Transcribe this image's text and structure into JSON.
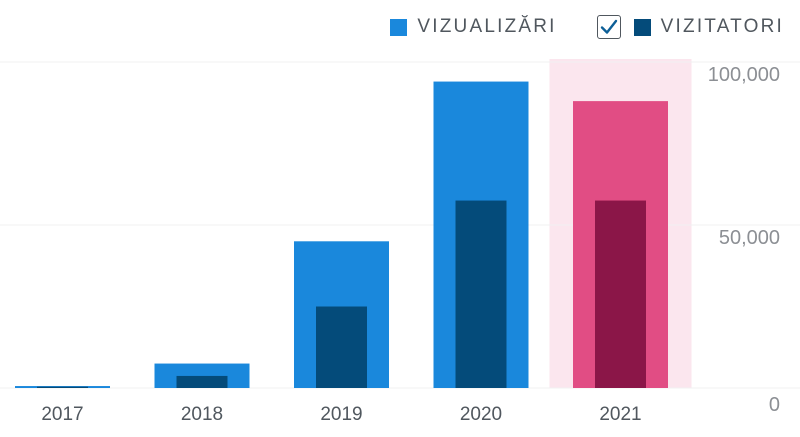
{
  "chart_data": {
    "type": "bar",
    "categories": [
      "2017",
      "2018",
      "2019",
      "2020",
      "2021"
    ],
    "series": [
      {
        "name": "VIZUALIZĂRI",
        "values": [
          600,
          7500,
          45000,
          94000,
          88000
        ]
      },
      {
        "name": "VIZITATORI",
        "values": [
          400,
          3700,
          25000,
          57500,
          57500
        ]
      }
    ],
    "ylim": [
      0,
      100000
    ],
    "yticks": [
      0,
      50000,
      100000
    ],
    "ytick_labels": [
      "0",
      "50,000",
      "100,000"
    ],
    "xlabel": "",
    "ylabel": "",
    "grid": true,
    "legend_position": "top-right",
    "highlighted_category": "2021",
    "colors": {
      "views": "#1a88dc",
      "visitors": "#044b7a",
      "views_highlight": "#e14d84",
      "visitors_highlight": "#8b1648",
      "highlight_band": "#fbe6ee",
      "grid": "#f0f0f1",
      "axis_text": "#50575e",
      "tick_text": "#8c8f94"
    }
  },
  "legend": {
    "checkbox_checked": true,
    "checkmark_icon": "checkmark-icon"
  }
}
